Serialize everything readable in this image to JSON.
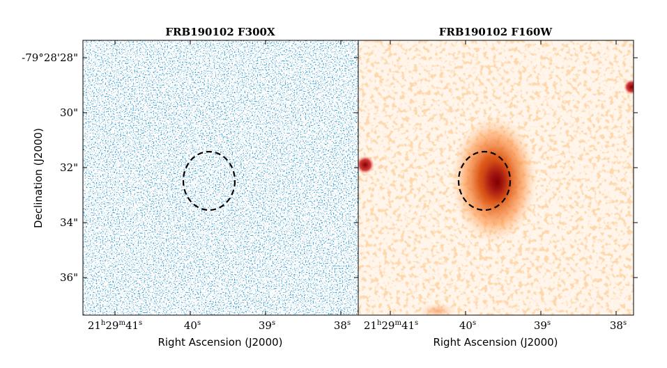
{
  "figure": {
    "panels": [
      {
        "title": "FRB190102 F300X",
        "colormap": "blue",
        "colors": {
          "bg": "#ffffff",
          "light": "#c9ddf0",
          "mid": "#6aaed6",
          "dark": "#08519c"
        }
      },
      {
        "title": "FRB190102 F160W",
        "colormap": "red",
        "colors": {
          "bg": "#fff5eb",
          "light": "#fdd0a2",
          "mid": "#f16913",
          "dark": "#7f0000"
        }
      }
    ],
    "ellipse_style": "dashed black",
    "y_axis_label": "Declination (J2000)",
    "x_axis_label": "Right Ascension (J2000)",
    "y_ticks": [
      {
        "text": "-79°28'28\"",
        "value_arcsec": 28
      },
      {
        "text": "30\"",
        "value_arcsec": 30
      },
      {
        "text": "32\"",
        "value_arcsec": 32
      },
      {
        "text": "34\"",
        "value_arcsec": 34
      },
      {
        "text": "36\"",
        "value_arcsec": 36
      }
    ],
    "x_ticks": [
      {
        "hh": "21",
        "h": "h",
        "mm": "29",
        "m": "m",
        "ss": "41",
        "s": "s",
        "value_sec": 41
      },
      {
        "ss": "40",
        "s": "s",
        "value_sec": 40
      },
      {
        "ss": "39",
        "s": "s",
        "value_sec": 39
      },
      {
        "ss": "38",
        "s": "s",
        "value_sec": 38
      }
    ]
  }
}
